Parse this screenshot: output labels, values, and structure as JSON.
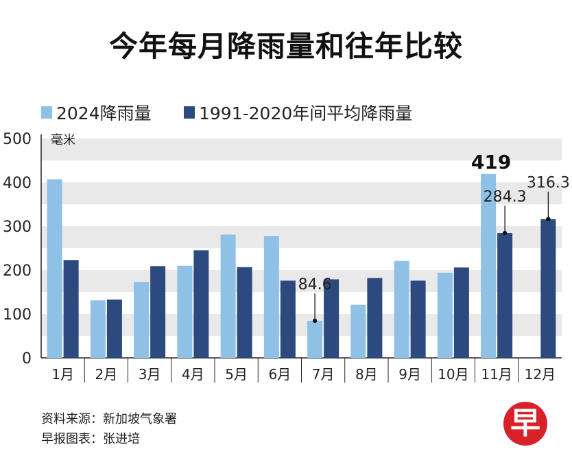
{
  "chart_data": {
    "type": "bar",
    "title": "今年每月降雨量和往年比较",
    "ylabel": "毫米",
    "xlabel": "",
    "ylim": [
      0,
      500
    ],
    "yticks": [
      0,
      100,
      200,
      300,
      400,
      500
    ],
    "categories": [
      "1月",
      "2月",
      "3月",
      "4月",
      "5月",
      "6月",
      "7月",
      "8月",
      "9月",
      "10月",
      "11月",
      "12月"
    ],
    "series": [
      {
        "name": "2024降雨量",
        "color": "#8fc1e6",
        "values": [
          407,
          131,
          173,
          210,
          281,
          278,
          84.6,
          121,
          221,
          194,
          419,
          null
        ]
      },
      {
        "name": "1991-2020年间平均降雨量",
        "color": "#2c4a7e",
        "values": [
          223,
          133,
          209,
          245,
          207,
          176,
          179,
          182,
          176,
          206,
          284.3,
          316.3
        ]
      }
    ],
    "annotations": [
      {
        "text": "84.6",
        "category": "7月",
        "series": 0,
        "value": 84.6,
        "bold": false
      },
      {
        "text": "419",
        "category": "11月",
        "series": 0,
        "value": 419,
        "bold": true
      },
      {
        "text": "284.3",
        "category": "11月",
        "series": 1,
        "value": 284.3,
        "bold": false
      },
      {
        "text": "316.3",
        "category": "12月",
        "series": 1,
        "value": 316.3,
        "bold": false
      }
    ]
  },
  "footer": {
    "source": "资料来源：新加坡气象署",
    "credit": "早报图表：张进培"
  },
  "logo": {
    "text": "早",
    "color": "#d8222a"
  }
}
